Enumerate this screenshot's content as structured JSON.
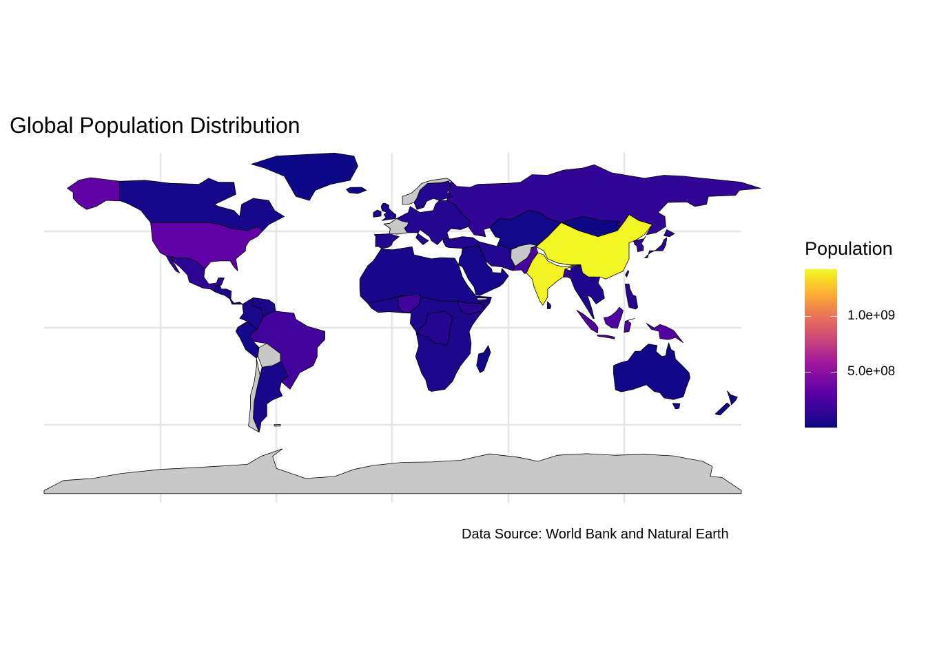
{
  "chart": {
    "title": "Global Population Distribution",
    "caption": "Data Source: World Bank and Natural Earth",
    "legend": {
      "title": "Population",
      "labels": [
        "1.0e+09",
        "5.0e+08"
      ],
      "tick_values": [
        1000000000,
        500000000
      ],
      "scale_min": 1000000,
      "scale_max": 1420000000,
      "palette": "plasma",
      "no_data_color": "#c8c8c8"
    }
  },
  "chart_data": {
    "type": "heatmap",
    "title": "Global Population Distribution",
    "caption": "Data Source: World Bank and Natural Earth",
    "legend_title": "Population",
    "legend_placement": "right",
    "grid": true,
    "regions": [
      {
        "country": "China",
        "value": 1410000000
      },
      {
        "country": "India",
        "value": 1400000000
      },
      {
        "country": "United States",
        "value": 330000000
      },
      {
        "country": "Indonesia",
        "value": 270000000
      },
      {
        "country": "Pakistan",
        "value": 230000000
      },
      {
        "country": "Brazil",
        "value": 212000000
      },
      {
        "country": "Nigeria",
        "value": 210000000
      },
      {
        "country": "Bangladesh",
        "value": 165000000
      },
      {
        "country": "Russia",
        "value": 145000000
      },
      {
        "country": "Mexico",
        "value": 128000000
      },
      {
        "country": "Japan",
        "value": 125000000
      },
      {
        "country": "Ethiopia",
        "value": 115000000
      },
      {
        "country": "Philippines",
        "value": 110000000
      },
      {
        "country": "Egypt",
        "value": 102000000
      },
      {
        "country": "Vietnam",
        "value": 97000000
      },
      {
        "country": "DR Congo",
        "value": 90000000
      },
      {
        "country": "Iran",
        "value": 84000000
      },
      {
        "country": "Turkey",
        "value": 84000000
      },
      {
        "country": "Germany",
        "value": 83000000
      },
      {
        "country": "Thailand",
        "value": 70000000
      },
      {
        "country": "United Kingdom",
        "value": 67000000
      },
      {
        "country": "Tanzania",
        "value": 60000000
      },
      {
        "country": "South Africa",
        "value": 59000000
      },
      {
        "country": "Kenya",
        "value": 54000000
      },
      {
        "country": "Colombia",
        "value": 51000000
      },
      {
        "country": "Algeria",
        "value": 44000000
      },
      {
        "country": "Sudan",
        "value": 44000000
      },
      {
        "country": "Argentina",
        "value": 45000000
      },
      {
        "country": "Ukraine",
        "value": 44000000
      },
      {
        "country": "Canada",
        "value": 38000000
      },
      {
        "country": "Peru",
        "value": 33000000
      },
      {
        "country": "Saudi Arabia",
        "value": 35000000
      },
      {
        "country": "Australia",
        "value": 26000000
      },
      {
        "country": "Kazakhstan",
        "value": 19000000
      },
      {
        "country": "Greenland",
        "value": 56000
      },
      {
        "country": "New Zealand",
        "value": 5000000
      },
      {
        "country": "Madagascar",
        "value": 28000000
      },
      {
        "country": "Mongolia",
        "value": 3300000
      },
      {
        "country": "France",
        "value": null
      },
      {
        "country": "Norway",
        "value": null
      },
      {
        "country": "Somaliland",
        "value": null
      },
      {
        "country": "Falkland Islands",
        "value": null
      },
      {
        "country": "Antarctica",
        "value": null
      }
    ]
  }
}
